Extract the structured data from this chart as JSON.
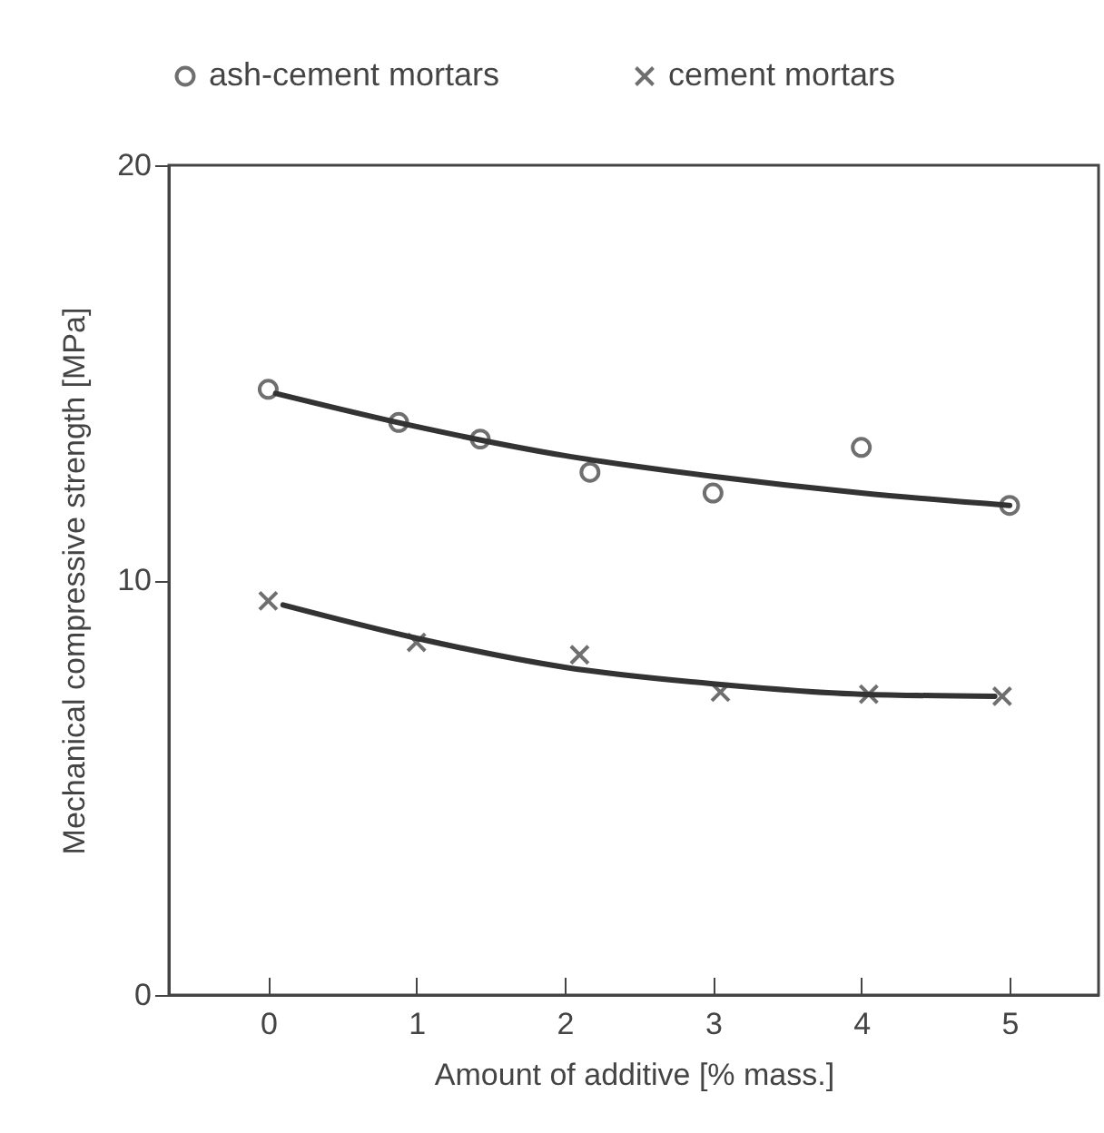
{
  "chart_data": {
    "type": "scatter",
    "xlabel": "Amount of additive [% mass.]",
    "ylabel": "Mechanical compressive strength [MPa]",
    "xlim": [
      -0.67,
      5.6
    ],
    "xticks": [
      0,
      1,
      2,
      3,
      4,
      5
    ],
    "ylim": [
      0,
      20
    ],
    "yticks": [
      0,
      10,
      20
    ],
    "grid": false,
    "legend": "top",
    "series": [
      {
        "name": "ash-cement mortars",
        "color": "#333333",
        "marker": "circle",
        "x": [
          0,
          0.88,
          1.43,
          2.17,
          3.0,
          4.0,
          5.0
        ],
        "values": [
          14.6,
          13.8,
          13.4,
          12.6,
          12.1,
          13.2,
          11.8
        ]
      },
      {
        "name": "cement mortars",
        "color": "#333333",
        "marker": "cross",
        "x": [
          0,
          1.0,
          2.1,
          3.05,
          4.05,
          4.95
        ],
        "values": [
          9.5,
          8.5,
          8.2,
          7.3,
          7.25,
          7.2
        ]
      },
      {
        "type": "line",
        "color": "#333333",
        "marker": "none",
        "x": [
          0.05,
          1,
          2,
          3,
          4,
          5
        ],
        "values": [
          14.5,
          13.7,
          13.0,
          12.5,
          12.1,
          11.8
        ]
      },
      {
        "type": "line",
        "color": "#333333",
        "marker": "none",
        "x": [
          0.1,
          1,
          2,
          3,
          4,
          4.9
        ],
        "values": [
          9.4,
          8.6,
          7.9,
          7.5,
          7.25,
          7.2
        ]
      }
    ]
  }
}
